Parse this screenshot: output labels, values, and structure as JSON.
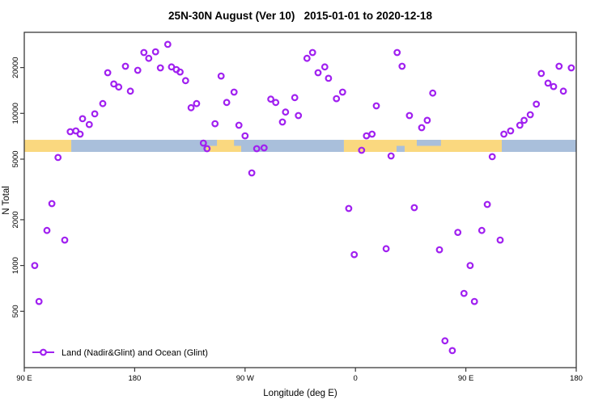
{
  "chart_data": {
    "type": "scatter",
    "title": "25N-30N August (Ver 10)   2015-01-01 to 2020-12-18",
    "xlabel": "Longitude (deg E)",
    "ylabel": "N Total",
    "legend": {
      "label": "Land (Nadir&Glint) and Ocean (Glint)",
      "position": "bottom-left-inside"
    },
    "x_axis": {
      "note": "longitude continues eastward from 90E (left) wrapping past 180 and 0 to 180 (right)",
      "range_deg": [
        90,
        540
      ],
      "ticks": [
        {
          "deg": 90,
          "label": "90 E"
        },
        {
          "deg": 180,
          "label": "180"
        },
        {
          "deg": 270,
          "label": "90 W"
        },
        {
          "deg": 360,
          "label": "0"
        },
        {
          "deg": 450,
          "label": "90 E"
        },
        {
          "deg": 540,
          "label": "180"
        }
      ]
    },
    "y_axis": {
      "scale": "log10",
      "range": [
        213,
        33800
      ],
      "ticks": [
        {
          "value": 500,
          "label": "500"
        },
        {
          "value": 1000,
          "label": "1000"
        },
        {
          "value": 2000,
          "label": "2000"
        },
        {
          "value": 5000,
          "label": "5000"
        },
        {
          "value": 10000,
          "label": "10000"
        },
        {
          "value": 20000,
          "label": "20000"
        }
      ],
      "grid": false
    },
    "band": {
      "meaning": "land/ocean map strip along the 25N-30N latitude belt",
      "y_top_value": 6700,
      "y_bottom_value": 5580,
      "segments": [
        {
          "from_deg": 90,
          "to_deg": 128.3,
          "type": "land"
        },
        {
          "from_deg": 128.3,
          "to_deg": 238.5,
          "type": "ocean"
        },
        {
          "from_deg": 238.5,
          "to_deg": 266.8,
          "type": "land"
        },
        {
          "from_deg": 266.8,
          "to_deg": 350.6,
          "type": "ocean"
        },
        {
          "from_deg": 350.6,
          "to_deg": 479.3,
          "type": "land"
        },
        {
          "from_deg": 479.3,
          "to_deg": 540,
          "type": "ocean"
        }
      ],
      "patches": [
        {
          "from_deg": 238.5,
          "to_deg": 247.1,
          "type": "ocean",
          "half": "top"
        },
        {
          "from_deg": 261.0,
          "to_deg": 266.8,
          "type": "ocean",
          "half": "top"
        },
        {
          "from_deg": 393.5,
          "to_deg": 400.1,
          "type": "ocean",
          "half": "bottom"
        },
        {
          "from_deg": 410.0,
          "to_deg": 429.7,
          "type": "ocean",
          "half": "top"
        }
      ]
    },
    "points": [
      [
        98.5,
        1000
      ],
      [
        102,
        580
      ],
      [
        108.5,
        1700
      ],
      [
        112.5,
        2550
      ],
      [
        117.5,
        5130
      ],
      [
        123,
        1470
      ],
      [
        127.5,
        7580
      ],
      [
        132,
        7670
      ],
      [
        135.5,
        7300
      ],
      [
        137.5,
        9220
      ],
      [
        143,
        8450
      ],
      [
        147.5,
        9930
      ],
      [
        154,
        11600
      ],
      [
        158,
        18500
      ],
      [
        163,
        15600
      ],
      [
        167,
        14900
      ],
      [
        172.5,
        20400
      ],
      [
        176.5,
        14000
      ],
      [
        182.5,
        19200
      ],
      [
        187.5,
        25100
      ],
      [
        191.5,
        23000
      ],
      [
        197,
        25400
      ],
      [
        201,
        19900
      ],
      [
        207,
        28400
      ],
      [
        210,
        20200
      ],
      [
        214,
        19400
      ],
      [
        217,
        18700
      ],
      [
        221.5,
        16400
      ],
      [
        226,
        10900
      ],
      [
        230.5,
        11600
      ],
      [
        236,
        6380
      ],
      [
        239,
        5860
      ],
      [
        245.5,
        8550
      ],
      [
        250.5,
        17600
      ],
      [
        255,
        11800
      ],
      [
        261,
        13800
      ],
      [
        265,
        8350
      ],
      [
        270,
        7120
      ],
      [
        275.5,
        4060
      ],
      [
        279.5,
        5860
      ],
      [
        285.5,
        5930
      ],
      [
        291,
        12400
      ],
      [
        295,
        11800
      ],
      [
        300.5,
        8770
      ],
      [
        303,
        10200
      ],
      [
        310.5,
        12700
      ],
      [
        313.5,
        9680
      ],
      [
        320.5,
        23000
      ],
      [
        325,
        25100
      ],
      [
        329.5,
        18500
      ],
      [
        335,
        20200
      ],
      [
        338,
        17000
      ],
      [
        344.5,
        12500
      ],
      [
        349.5,
        13800
      ],
      [
        354.5,
        2370
      ],
      [
        359,
        1180
      ],
      [
        365,
        5720
      ],
      [
        369,
        7120
      ],
      [
        373.5,
        7300
      ],
      [
        377,
        11200
      ],
      [
        385,
        1290
      ],
      [
        389,
        5250
      ],
      [
        394,
        25100
      ],
      [
        398,
        20400
      ],
      [
        404,
        9680
      ],
      [
        408,
        2400
      ],
      [
        414,
        8050
      ],
      [
        418.5,
        9000
      ],
      [
        423,
        13600
      ],
      [
        428.5,
        1270
      ],
      [
        433,
        320
      ],
      [
        439,
        276
      ],
      [
        443.5,
        1650
      ],
      [
        448.5,
        656
      ],
      [
        453.5,
        1000
      ],
      [
        457,
        580
      ],
      [
        463,
        1700
      ],
      [
        467.5,
        2520
      ],
      [
        471.5,
        5190
      ],
      [
        478,
        1470
      ],
      [
        481,
        7300
      ],
      [
        486.5,
        7670
      ],
      [
        494,
        8350
      ],
      [
        497.5,
        9000
      ],
      [
        502.5,
        9800
      ],
      [
        507.5,
        11500
      ],
      [
        511.5,
        18300
      ],
      [
        517,
        15800
      ],
      [
        521.5,
        15000
      ],
      [
        526,
        20400
      ],
      [
        529.5,
        14000
      ],
      [
        536,
        19900
      ]
    ],
    "colors": {
      "point": "#A020F0",
      "land": "#FAD87F",
      "ocean": "#A9BFDB",
      "axis": "#3a3a3a"
    },
    "marker": {
      "shape": "open-circle",
      "radius_px": 3.3,
      "stroke_px": 2.2
    }
  }
}
